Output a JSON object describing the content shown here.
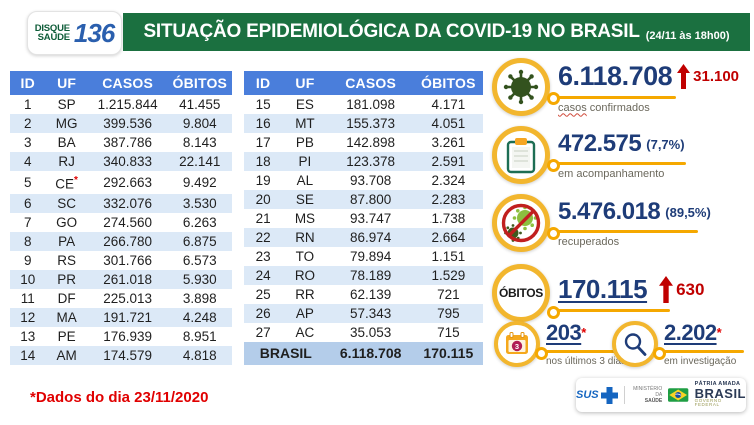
{
  "header": {
    "logo": {
      "line1": "DISQUE",
      "line2": "SAÚDE",
      "number": "136"
    },
    "title": "SITUAÇÃO EPIDEMIOLÓGICA DA COVID-19 NO BRASIL",
    "timestamp": "(24/11 às 18h00)"
  },
  "chart_data": {
    "type": "table",
    "title": "Situação epidemiológica da COVID-19 no Brasil (24/11 às 18h00)",
    "columns": [
      "ID",
      "UF",
      "CASOS",
      "ÓBITOS"
    ],
    "rows_left": [
      {
        "id": "1",
        "uf": "SP",
        "casos": "1.215.844",
        "obitos": "41.455"
      },
      {
        "id": "2",
        "uf": "MG",
        "casos": "399.536",
        "obitos": "9.804"
      },
      {
        "id": "3",
        "uf": "BA",
        "casos": "387.786",
        "obitos": "8.143"
      },
      {
        "id": "4",
        "uf": "RJ",
        "casos": "340.833",
        "obitos": "22.141"
      },
      {
        "id": "5",
        "uf": "CE",
        "note": "*",
        "casos": "292.663",
        "obitos": "9.492"
      },
      {
        "id": "6",
        "uf": "SC",
        "casos": "332.076",
        "obitos": "3.530"
      },
      {
        "id": "7",
        "uf": "GO",
        "casos": "274.560",
        "obitos": "6.263"
      },
      {
        "id": "8",
        "uf": "PA",
        "casos": "266.780",
        "obitos": "6.875"
      },
      {
        "id": "9",
        "uf": "RS",
        "casos": "301.766",
        "obitos": "6.573"
      },
      {
        "id": "10",
        "uf": "PR",
        "casos": "261.018",
        "obitos": "5.930"
      },
      {
        "id": "11",
        "uf": "DF",
        "casos": "225.013",
        "obitos": "3.898"
      },
      {
        "id": "12",
        "uf": "MA",
        "casos": "191.721",
        "obitos": "4.248"
      },
      {
        "id": "13",
        "uf": "PE",
        "casos": "176.939",
        "obitos": "8.951"
      },
      {
        "id": "14",
        "uf": "AM",
        "casos": "174.579",
        "obitos": "4.818"
      }
    ],
    "rows_right": [
      {
        "id": "15",
        "uf": "ES",
        "casos": "181.098",
        "obitos": "4.171"
      },
      {
        "id": "16",
        "uf": "MT",
        "casos": "155.373",
        "obitos": "4.051"
      },
      {
        "id": "17",
        "uf": "PB",
        "casos": "142.898",
        "obitos": "3.261"
      },
      {
        "id": "18",
        "uf": "PI",
        "casos": "123.378",
        "obitos": "2.591"
      },
      {
        "id": "19",
        "uf": "AL",
        "casos": "93.708",
        "obitos": "2.324"
      },
      {
        "id": "20",
        "uf": "SE",
        "casos": "87.800",
        "obitos": "2.283"
      },
      {
        "id": "21",
        "uf": "MS",
        "casos": "93.747",
        "obitos": "1.738"
      },
      {
        "id": "22",
        "uf": "RN",
        "casos": "86.974",
        "obitos": "2.664"
      },
      {
        "id": "23",
        "uf": "TO",
        "casos": "79.894",
        "obitos": "1.151"
      },
      {
        "id": "24",
        "uf": "RO",
        "casos": "78.189",
        "obitos": "1.529"
      },
      {
        "id": "25",
        "uf": "RR",
        "casos": "62.139",
        "obitos": "721"
      },
      {
        "id": "26",
        "uf": "AP",
        "casos": "57.343",
        "obitos": "795"
      },
      {
        "id": "27",
        "uf": "AC",
        "casos": "35.053",
        "obitos": "715"
      }
    ],
    "total": {
      "label": "BRASIL",
      "casos": "6.118.708",
      "obitos": "170.115"
    }
  },
  "stats": [
    {
      "icon": "virus-icon",
      "value": "6.118.708",
      "delta": "31.100",
      "label_wavy": "casos",
      "label_rest": " confirmados"
    },
    {
      "icon": "clipboard-icon",
      "value": "472.575",
      "percent": "(7,7%)",
      "label": "em acompanhamento"
    },
    {
      "icon": "no-virus-icon",
      "value": "5.476.018",
      "percent": "(89,5%)",
      "label": "recuperados"
    },
    {
      "icon": "obitos-circle",
      "icon_text": "ÓBITOS",
      "value": "170.115",
      "delta": "630"
    },
    {
      "icon": "calendar-icon",
      "value": "203",
      "asterisk": "*",
      "label": "nos últimos 3 dias"
    },
    {
      "icon": "magnifier-icon",
      "value": "2.202",
      "asterisk": "*",
      "label": "em investigação"
    }
  ],
  "footnote": "*Dados do dia 23/11/2020",
  "footer": {
    "sus": "SUS",
    "ministry_line1": "MINISTÉRIO DA",
    "ministry_line2": "SAÚDE",
    "motto_top": "PÁTRIA AMADA",
    "motto_main": "BRASIL",
    "motto_sub": "GOVERNO FEDERAL"
  },
  "colors": {
    "banner_green": "#1b7040",
    "table_header_blue": "#4a7edb",
    "row_alt_blue": "#dce9f7",
    "total_row_blue": "#b4cdea",
    "stat_navy": "#1e3c78",
    "alert_red": "#c00000",
    "accent_yellow": "#f5a800",
    "ring_yellow": "#f2b62e"
  }
}
